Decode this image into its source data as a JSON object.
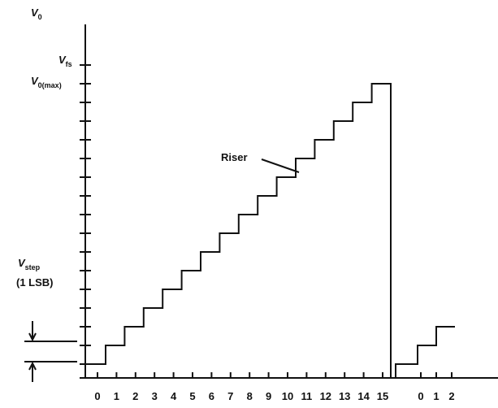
{
  "y_axis": {
    "symbol": "V",
    "subscript": "0"
  },
  "full_scale": {
    "symbol": "V",
    "subscript": "fs"
  },
  "max_output": {
    "symbol": "V",
    "subscript": "0(max)"
  },
  "riser_label": "Riser",
  "step_label": {
    "symbol": "V",
    "subscript": "step",
    "note": "(1 LSB)"
  },
  "x_labels": [
    "0",
    "1",
    "2",
    "3",
    "4",
    "5",
    "6",
    "7",
    "8",
    "9",
    "10",
    "11",
    "12",
    "13",
    "14",
    "15",
    "0",
    "1",
    "2"
  ]
}
